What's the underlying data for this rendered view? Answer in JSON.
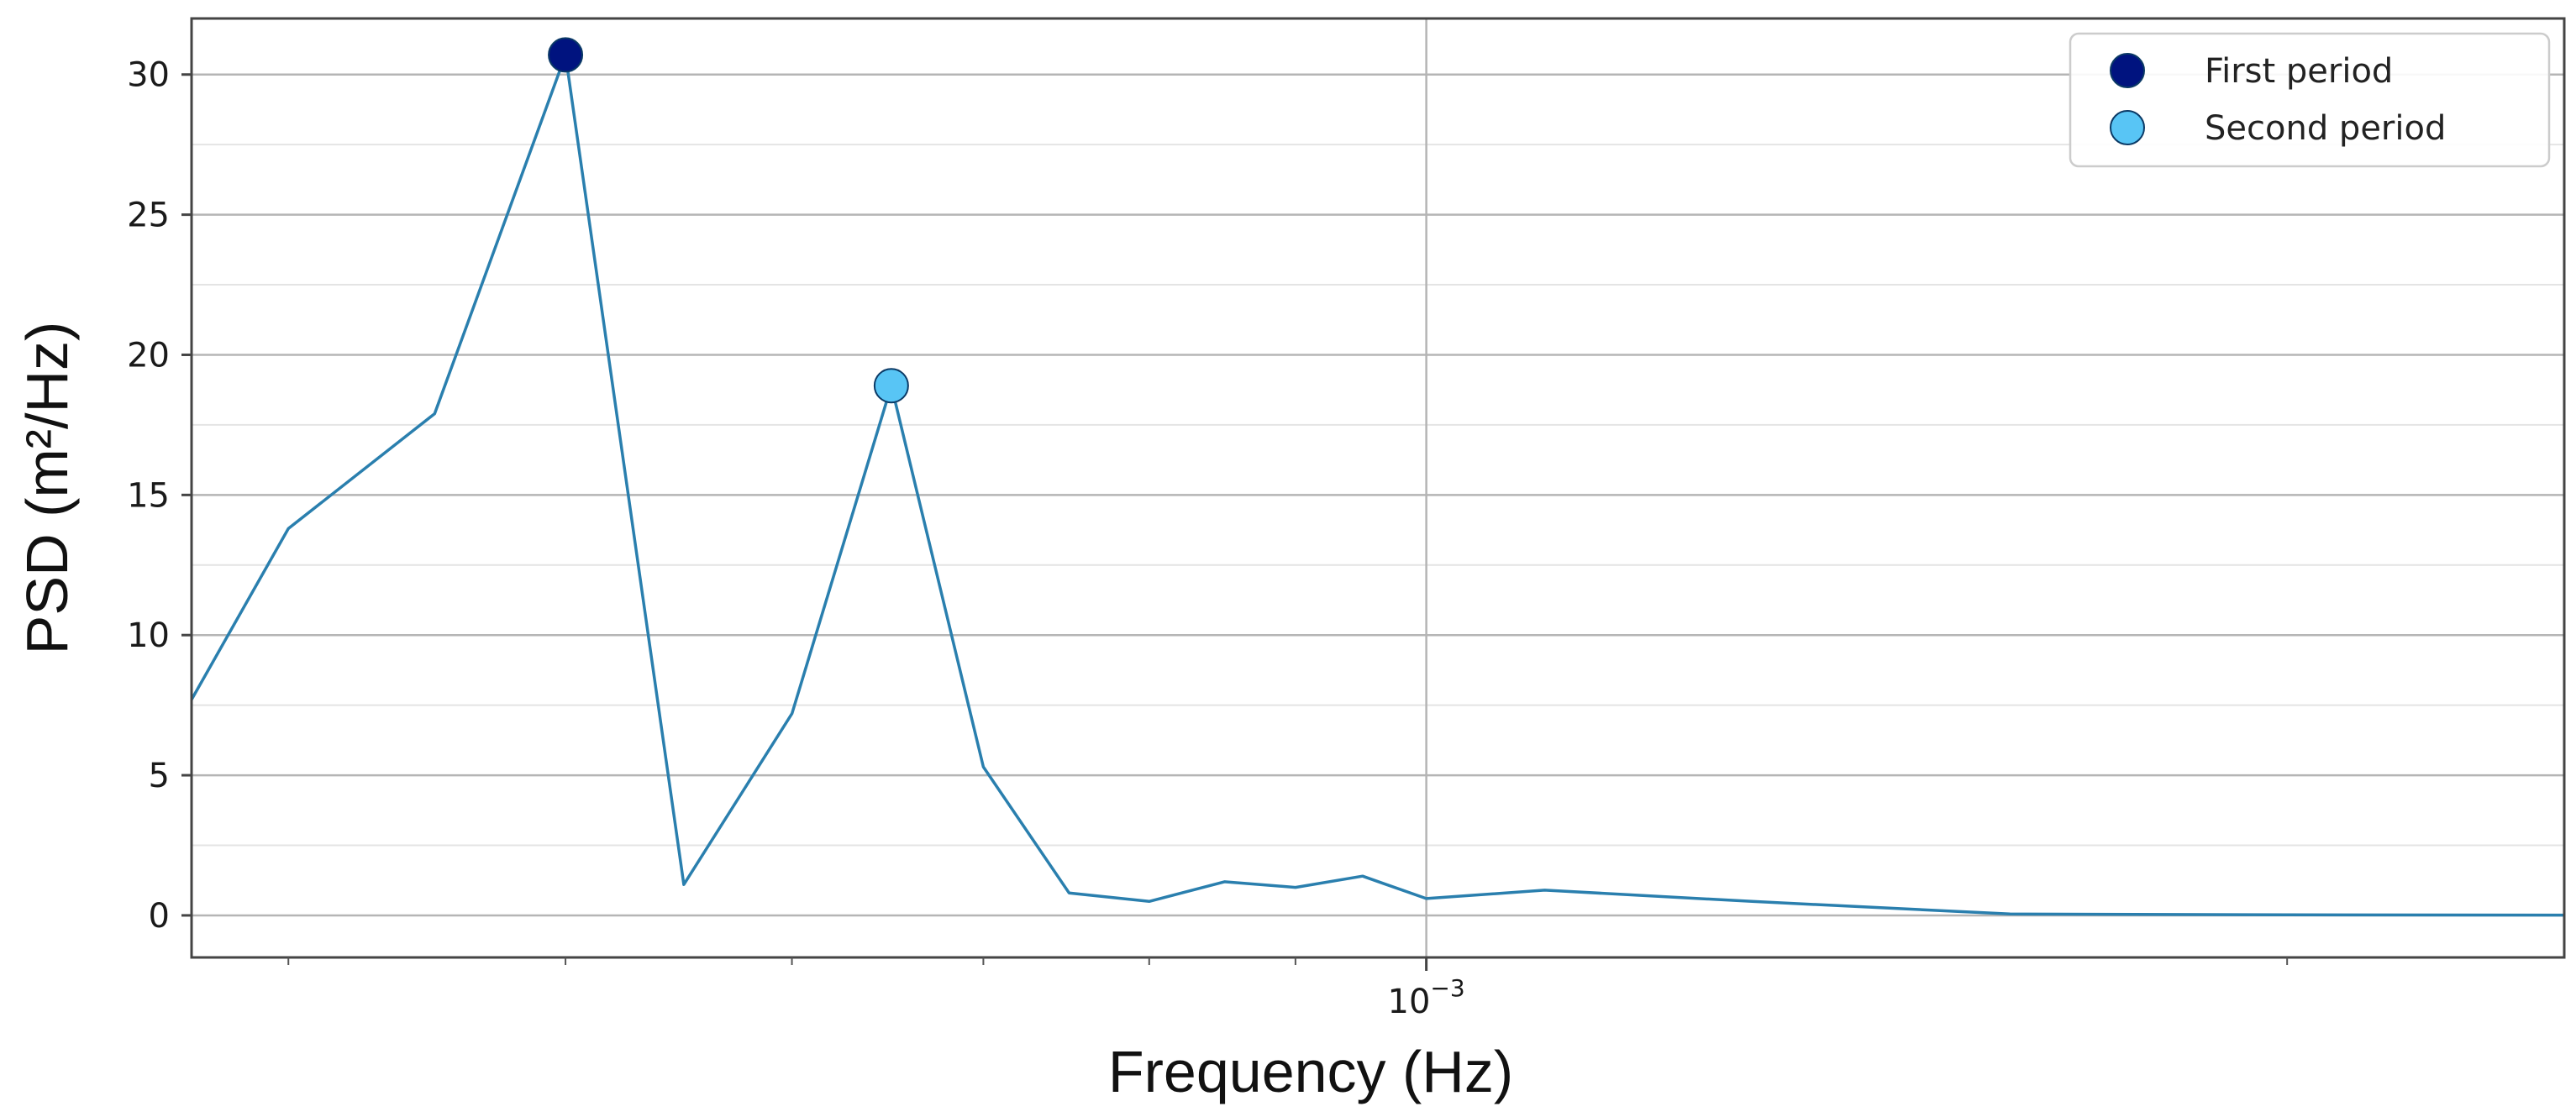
{
  "chart_data": {
    "type": "line",
    "xscale": "log",
    "xlabel": "Frequency (Hz)",
    "ylabel": "PSD (m²/Hz)",
    "xlim": [
      0.00037,
      0.0025
    ],
    "ylim": [
      -1.5,
      32
    ],
    "yticks": [
      0,
      5,
      10,
      15,
      20,
      25,
      30
    ],
    "yticklabels": [
      "0",
      "5",
      "10",
      "15",
      "20",
      "25",
      "30"
    ],
    "xticks": [
      0.001
    ],
    "xticklabels": [
      {
        "base": "10",
        "exp": "−3"
      }
    ],
    "xminor_ticks": [
      0.0004,
      0.0005,
      0.0006,
      0.0007,
      0.0008,
      0.0009,
      0.002
    ],
    "grid": true,
    "legend_position": "top-right",
    "series": [
      {
        "color": "#2a7fae",
        "x": [
          0.00037,
          0.0004,
          0.00045,
          0.0005,
          0.00055,
          0.0006,
          0.00065,
          0.0007,
          0.00075,
          0.0008,
          0.00085,
          0.0009,
          0.00095,
          0.001,
          0.0011,
          0.0013,
          0.0016,
          0.002,
          0.0025
        ],
        "y": [
          7.7,
          13.8,
          17.9,
          30.7,
          1.1,
          7.2,
          18.9,
          5.3,
          0.8,
          0.5,
          1.2,
          1.0,
          1.4,
          0.6,
          0.9,
          0.5,
          0.05,
          0.02,
          0.01
        ]
      }
    ],
    "markers": [
      {
        "label": "First period",
        "x": 0.0005,
        "y": 30.7,
        "color": "#00137f"
      },
      {
        "label": "Second period",
        "x": 0.00065,
        "y": 18.9,
        "color": "#58c5f5"
      }
    ]
  }
}
